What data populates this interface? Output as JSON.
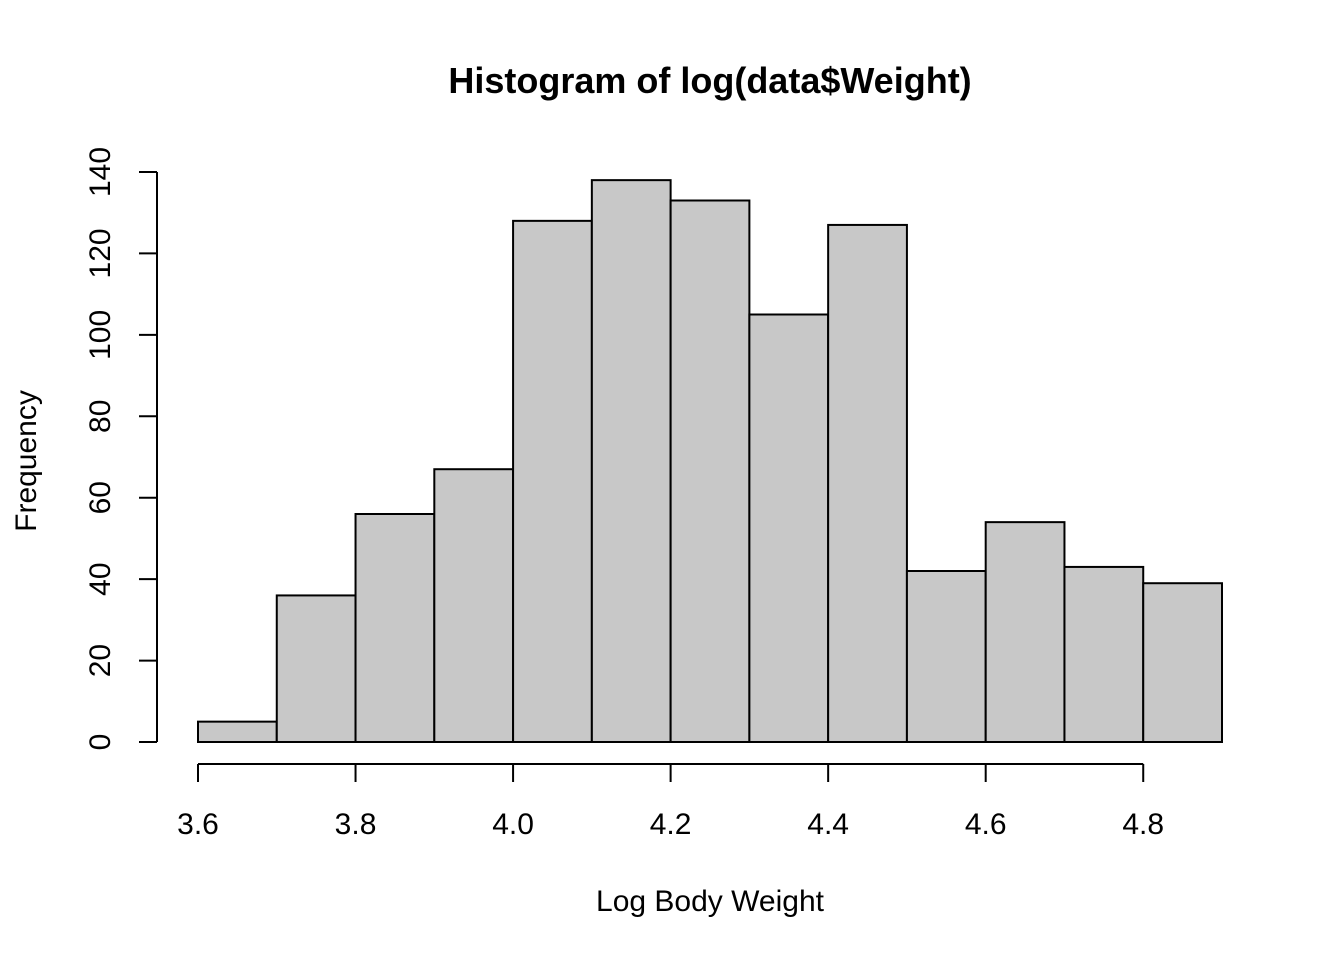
{
  "chart_data": {
    "type": "bar",
    "title": "Histogram of log(data$Weight)",
    "xlabel": "Log Body Weight",
    "ylabel": "Frequency",
    "bins": [
      {
        "x0": 3.6,
        "x1": 3.7,
        "count": 5
      },
      {
        "x0": 3.7,
        "x1": 3.8,
        "count": 36
      },
      {
        "x0": 3.8,
        "x1": 3.9,
        "count": 56
      },
      {
        "x0": 3.9,
        "x1": 4.0,
        "count": 67
      },
      {
        "x0": 4.0,
        "x1": 4.1,
        "count": 128
      },
      {
        "x0": 4.1,
        "x1": 4.2,
        "count": 138
      },
      {
        "x0": 4.2,
        "x1": 4.3,
        "count": 133
      },
      {
        "x0": 4.3,
        "x1": 4.4,
        "count": 105
      },
      {
        "x0": 4.4,
        "x1": 4.5,
        "count": 127
      },
      {
        "x0": 4.5,
        "x1": 4.6,
        "count": 42
      },
      {
        "x0": 4.6,
        "x1": 4.7,
        "count": 54
      },
      {
        "x0": 4.7,
        "x1": 4.8,
        "count": 43
      },
      {
        "x0": 4.8,
        "x1": 4.9,
        "count": 39
      }
    ],
    "xlim": [
      3.6,
      4.9
    ],
    "ylim": [
      0,
      140
    ],
    "x_ticks": [
      "3.6",
      "3.8",
      "4.0",
      "4.2",
      "4.4",
      "4.6",
      "4.8"
    ],
    "y_ticks": [
      "0",
      "20",
      "40",
      "60",
      "80",
      "100",
      "120",
      "140"
    ],
    "bar_color": "#c8c8c8",
    "edge_color": "#000000",
    "grid": false
  }
}
